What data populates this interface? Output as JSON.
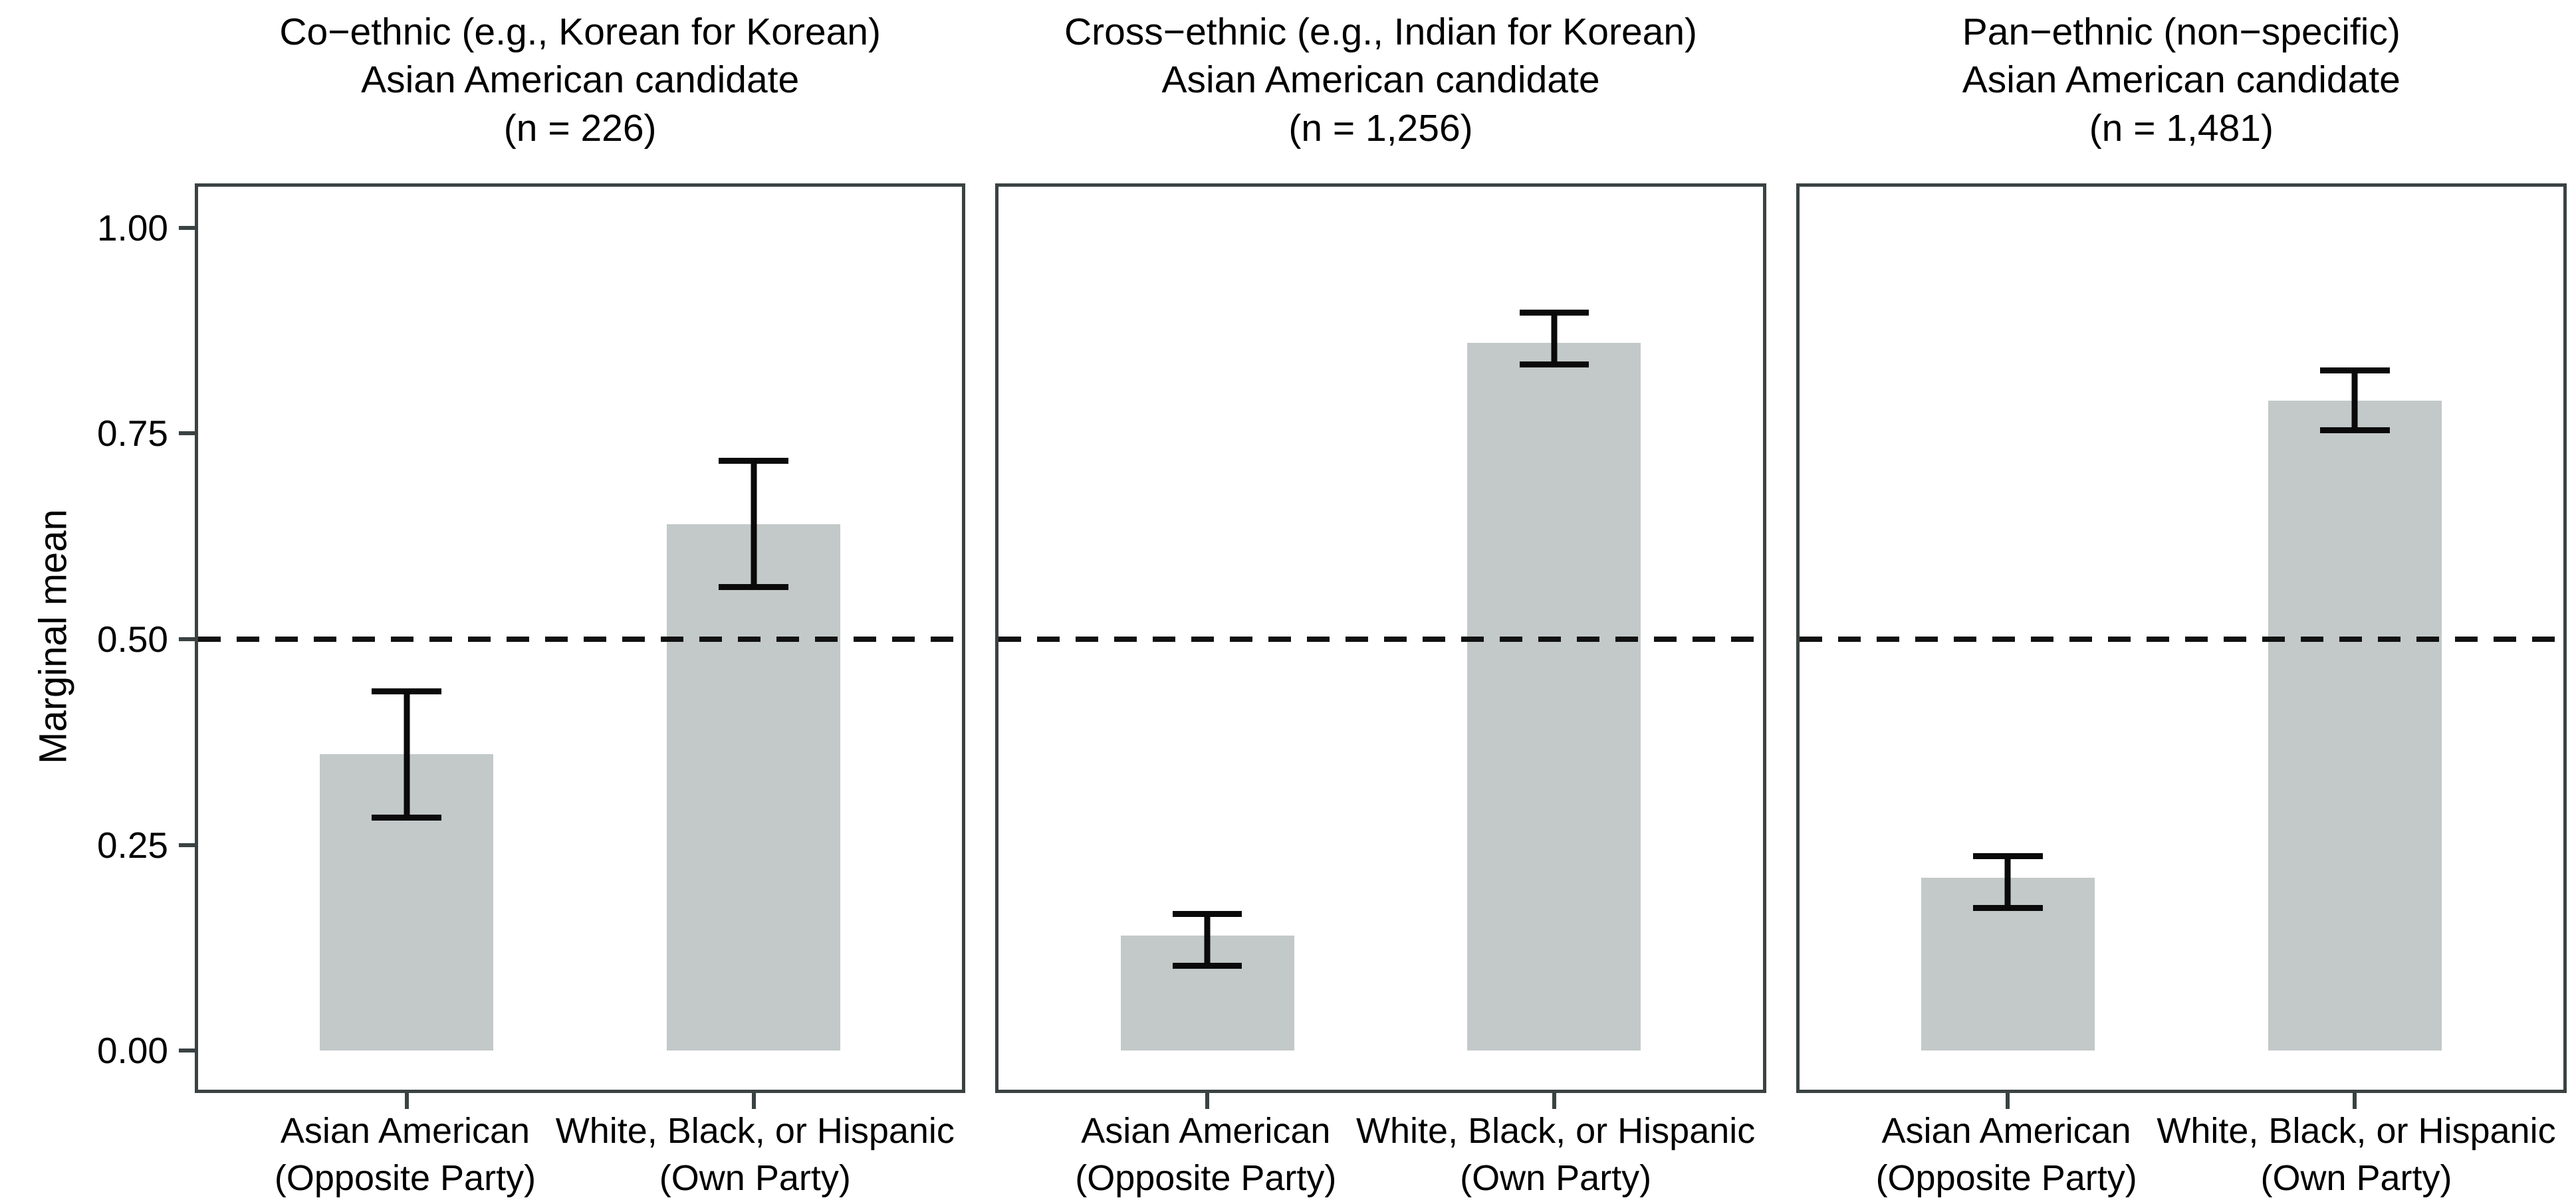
{
  "figure": {
    "y_axis": {
      "label": "Marginal mean",
      "ticks": [
        {
          "value": 1.0,
          "label": "1.00"
        },
        {
          "value": 0.75,
          "label": "0.75"
        },
        {
          "value": 0.5,
          "label": "0.50"
        },
        {
          "value": 0.25,
          "label": "0.25"
        },
        {
          "value": 0.0,
          "label": "0.00"
        }
      ]
    },
    "reference_line": {
      "value": 0.5,
      "style": "dashed"
    },
    "colors": {
      "bar_fill": "#c2c9c8",
      "panel_border": "#3a4242",
      "error_bar": "#0a0a0a",
      "dashed_line": "#111111",
      "text": "#000000",
      "background": "#ffffff"
    }
  },
  "chart_data": [
    {
      "type": "bar",
      "title_lines": [
        "Co−ethnic (e.g., Korean for Korean)",
        "Asian American candidate",
        "(n = 226)"
      ],
      "categories": [
        [
          "Asian American",
          "(Opposite Party)"
        ],
        [
          "White, Black, or Hispanic",
          "(Own Party)"
        ]
      ],
      "values": [
        0.36,
        0.64
      ],
      "ci_low": [
        0.28,
        0.56
      ],
      "ci_high": [
        0.44,
        0.72
      ],
      "ylabel": "Marginal mean",
      "ylim": [
        0,
        1
      ],
      "grid": false,
      "legend": false,
      "reference_line": 0.5
    },
    {
      "type": "bar",
      "title_lines": [
        "Cross−ethnic (e.g., Indian for Korean)",
        "Asian American candidate",
        "(n = 1,256)"
      ],
      "categories": [
        [
          "Asian American",
          "(Opposite Party)"
        ],
        [
          "White, Black, or Hispanic",
          "(Own Party)"
        ]
      ],
      "values": [
        0.14,
        0.86
      ],
      "ci_low": [
        0.1,
        0.83
      ],
      "ci_high": [
        0.17,
        0.9
      ],
      "ylabel": "Marginal mean",
      "ylim": [
        0,
        1
      ],
      "grid": false,
      "legend": false,
      "reference_line": 0.5
    },
    {
      "type": "bar",
      "title_lines": [
        "Pan−ethnic (non−specific)",
        "Asian American candidate",
        "(n = 1,481)"
      ],
      "categories": [
        [
          "Asian American",
          "(Opposite Party)"
        ],
        [
          "White, Black, or Hispanic",
          "(Own Party)"
        ]
      ],
      "values": [
        0.21,
        0.79
      ],
      "ci_low": [
        0.17,
        0.75
      ],
      "ci_high": [
        0.24,
        0.83
      ],
      "ylabel": "Marginal mean",
      "ylim": [
        0,
        1
      ],
      "grid": false,
      "legend": false,
      "reference_line": 0.5
    }
  ]
}
